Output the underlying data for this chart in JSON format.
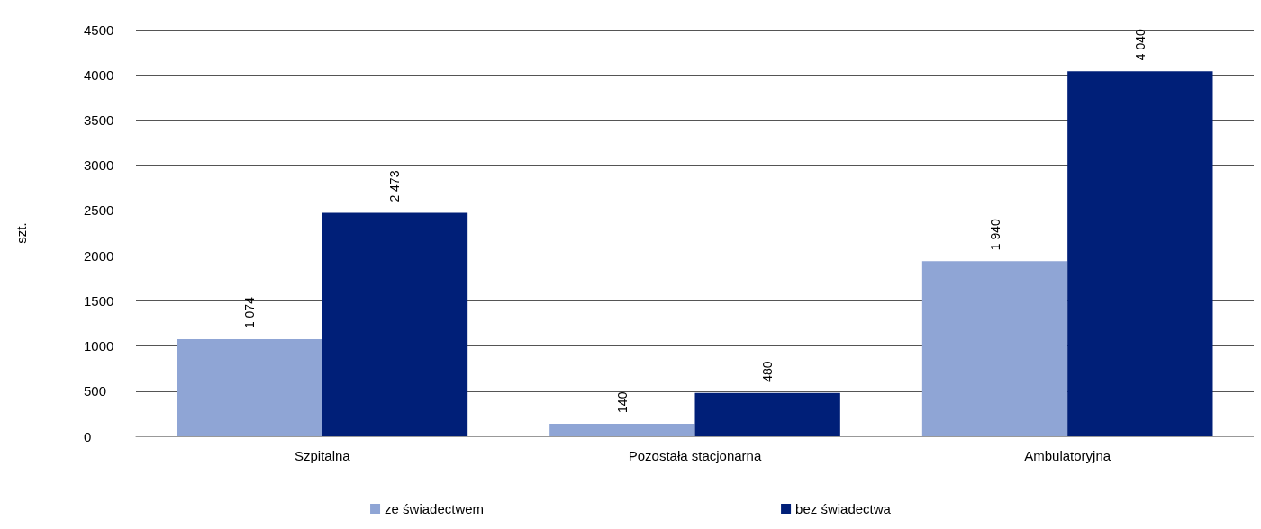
{
  "chart_data": {
    "type": "bar",
    "ylabel": "szt.",
    "categories": [
      "Szpitalna",
      "Pozostała stacjonarna",
      "Ambulatoryjna"
    ],
    "series": [
      {
        "name": "ze świadectwem",
        "color": "#8fa5d5",
        "values": [
          1074,
          140,
          1940
        ],
        "value_labels": [
          "1 074",
          "140",
          "1 940"
        ]
      },
      {
        "name": "bez świadectwa",
        "color": "#001f78",
        "values": [
          2473,
          480,
          4040
        ],
        "value_labels": [
          "2 473",
          "480",
          "4 040"
        ]
      }
    ],
    "ylim": [
      0,
      4500
    ],
    "yticks": [
      0,
      500,
      1000,
      1500,
      2000,
      2500,
      3000,
      3500,
      4000,
      4500
    ],
    "grid": "y",
    "legend": "bottom"
  }
}
